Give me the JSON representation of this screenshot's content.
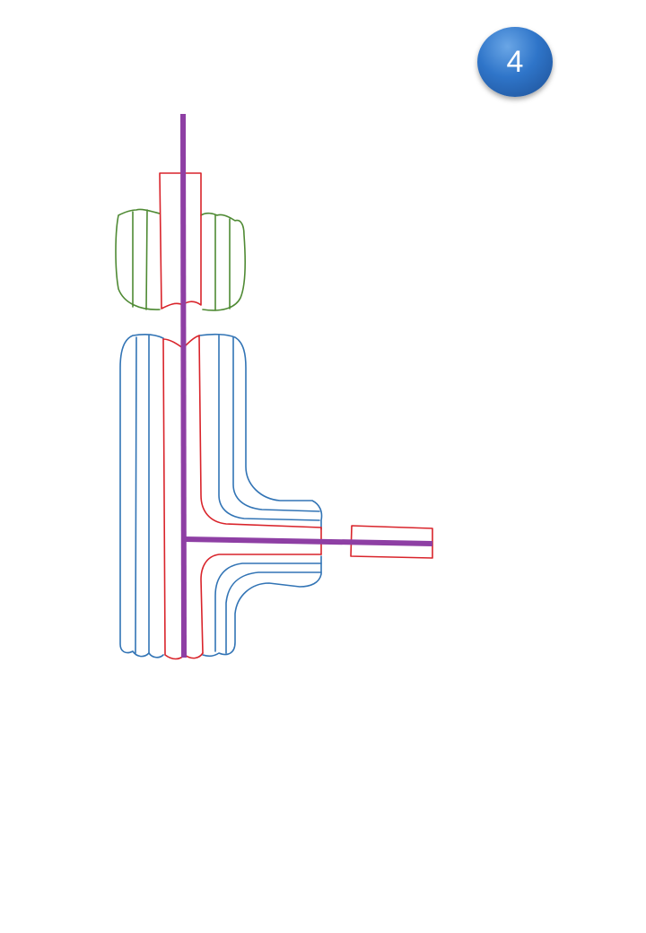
{
  "step_badge": {
    "number": "4",
    "color": "#2f75c9"
  },
  "colors": {
    "shaft": "#8e3fa4",
    "core": "#d9242b",
    "lower_layers": "#3274b5",
    "upper_layers": "#4f8a34"
  }
}
